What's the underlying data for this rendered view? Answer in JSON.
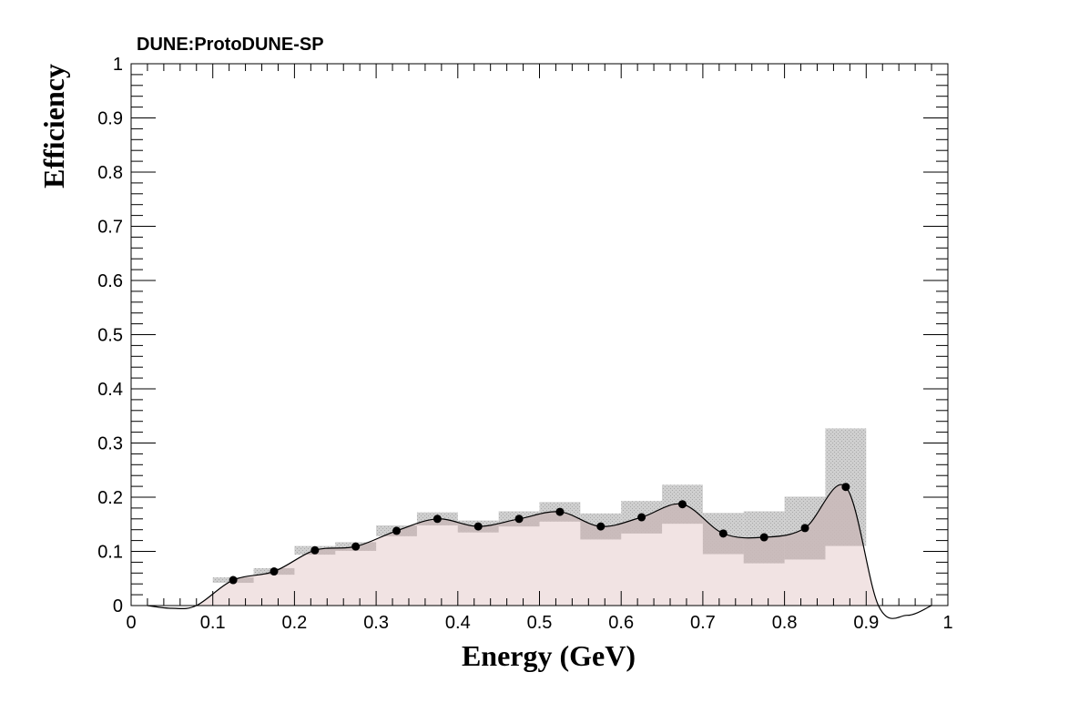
{
  "chart_data": {
    "type": "line",
    "title": "DUNE:ProtoDUNE-SP",
    "xlabel": "Energy (GeV)",
    "ylabel": "Efficiency",
    "xlim": [
      0,
      1
    ],
    "ylim": [
      0,
      1
    ],
    "x_ticks": [
      "0",
      "0.1",
      "0.2",
      "0.3",
      "0.4",
      "0.5",
      "0.6",
      "0.7",
      "0.8",
      "0.9",
      "1"
    ],
    "y_ticks": [
      "0",
      "0.1",
      "0.2",
      "0.3",
      "0.4",
      "0.5",
      "0.6",
      "0.7",
      "0.8",
      "0.9",
      "1"
    ],
    "bin_width": 0.05,
    "series": [
      {
        "points": [
          {
            "x": 0.125,
            "y": 0.047,
            "band": [
              0.042,
              0.052
            ]
          },
          {
            "x": 0.175,
            "y": 0.063,
            "band": [
              0.057,
              0.069
            ]
          },
          {
            "x": 0.225,
            "y": 0.102,
            "band": [
              0.094,
              0.11
            ]
          },
          {
            "x": 0.275,
            "y": 0.109,
            "band": [
              0.101,
              0.117
            ]
          },
          {
            "x": 0.325,
            "y": 0.138,
            "band": [
              0.128,
              0.148
            ]
          },
          {
            "x": 0.375,
            "y": 0.16,
            "band": [
              0.148,
              0.172
            ]
          },
          {
            "x": 0.425,
            "y": 0.146,
            "band": [
              0.135,
              0.157
            ]
          },
          {
            "x": 0.475,
            "y": 0.16,
            "band": [
              0.146,
              0.174
            ]
          },
          {
            "x": 0.525,
            "y": 0.173,
            "band": [
              0.155,
              0.191
            ]
          },
          {
            "x": 0.575,
            "y": 0.146,
            "band": [
              0.122,
              0.17
            ]
          },
          {
            "x": 0.625,
            "y": 0.163,
            "band": [
              0.133,
              0.193
            ]
          },
          {
            "x": 0.675,
            "y": 0.187,
            "band": [
              0.151,
              0.223
            ]
          },
          {
            "x": 0.725,
            "y": 0.133,
            "band": [
              0.095,
              0.171
            ]
          },
          {
            "x": 0.775,
            "y": 0.126,
            "band": [
              0.078,
              0.174
            ]
          },
          {
            "x": 0.825,
            "y": 0.143,
            "band": [
              0.085,
              0.201
            ]
          },
          {
            "x": 0.875,
            "y": 0.219,
            "band": [
              0.11,
              0.327
            ]
          }
        ]
      }
    ],
    "colors": {
      "band": "#c4c4c4",
      "fill": "#ecdada",
      "line": "#000000",
      "marker": "#000000"
    },
    "grid": false,
    "legend": "none"
  }
}
